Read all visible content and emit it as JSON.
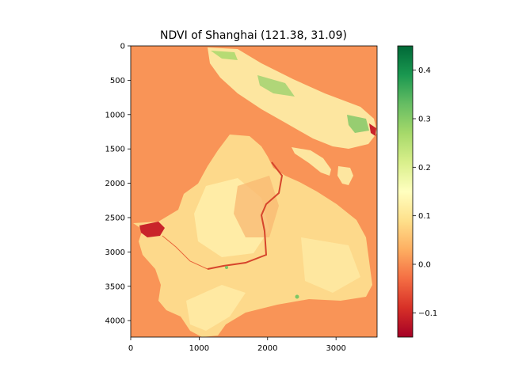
{
  "chart_data": {
    "type": "heatmap",
    "title": "NDVI of Shanghai  (121.38, 31.09)",
    "xlabel": "",
    "ylabel": "",
    "xlim": [
      0,
      3600
    ],
    "ylim": [
      4240,
      0
    ],
    "x_ticks": [
      0,
      1000,
      2000,
      3000
    ],
    "y_ticks": [
      0,
      500,
      1000,
      1500,
      2000,
      2500,
      3000,
      3500,
      4000
    ],
    "colorbar": {
      "colormap": "RdYlGn",
      "vmin": -0.15,
      "vmax": 0.45,
      "ticks": [
        -0.1,
        0.0,
        0.1,
        0.2,
        0.3,
        0.4
      ],
      "tick_labels": [
        "−0.1",
        "0.0",
        "0.1",
        "0.2",
        "0.3",
        "0.4"
      ]
    },
    "background_value": 0.02,
    "grid": false,
    "colors": {
      "water": "#f99457",
      "land_light": "#fdd98b",
      "land_pale": "#fff4b4",
      "vegetation": "#7dc765",
      "river": "#c9242a"
    }
  }
}
